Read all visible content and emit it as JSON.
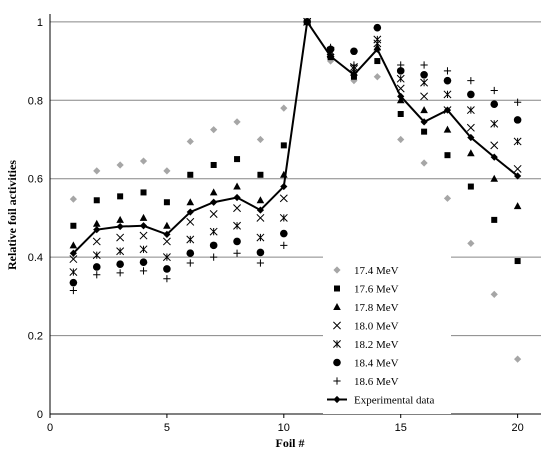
{
  "chart_data": {
    "type": "scatter",
    "title": "",
    "xlabel": "Foil #",
    "ylabel": "Relative foil activities",
    "xlim": [
      0,
      21
    ],
    "ylim": [
      0,
      1.02
    ],
    "xticks": [
      0,
      5,
      10,
      15,
      20
    ],
    "yticks": [
      0,
      0.2,
      0.4,
      0.6,
      0.8,
      1
    ],
    "ytick_labels": [
      "0",
      "0.2",
      "0.4",
      "0.6",
      "0.8",
      "1"
    ],
    "grid": "horizontal",
    "legend_position": "lower-center",
    "x": [
      1,
      2,
      3,
      4,
      5,
      6,
      7,
      8,
      9,
      10,
      11,
      12,
      13,
      14,
      15,
      16,
      17,
      18,
      19,
      20
    ],
    "series": [
      {
        "name": "17.4 MeV",
        "marker": "diamond",
        "color": "#a6a6a6",
        "values": [
          0.548,
          0.62,
          0.635,
          0.645,
          0.62,
          0.695,
          0.725,
          0.745,
          0.7,
          0.78,
          1.0,
          0.9,
          0.85,
          0.86,
          0.7,
          0.64,
          0.55,
          0.435,
          0.305,
          0.14
        ]
      },
      {
        "name": "17.6 MeV",
        "marker": "square",
        "color": "#000000",
        "values": [
          0.48,
          0.545,
          0.555,
          0.565,
          0.54,
          0.61,
          0.635,
          0.65,
          0.61,
          0.685,
          1.0,
          0.91,
          0.86,
          0.9,
          0.765,
          0.72,
          0.66,
          0.58,
          0.495,
          0.39
        ]
      },
      {
        "name": "17.8 MeV",
        "marker": "triangle",
        "color": "#000000",
        "values": [
          0.43,
          0.485,
          0.495,
          0.5,
          0.48,
          0.54,
          0.565,
          0.58,
          0.545,
          0.61,
          1.0,
          0.915,
          0.87,
          0.935,
          0.8,
          0.775,
          0.725,
          0.665,
          0.6,
          0.53
        ]
      },
      {
        "name": "18.0 MeV",
        "marker": "x",
        "color": "#000000",
        "values": [
          0.395,
          0.44,
          0.45,
          0.455,
          0.44,
          0.49,
          0.51,
          0.525,
          0.5,
          0.55,
          1.0,
          0.92,
          0.88,
          0.945,
          0.83,
          0.81,
          0.775,
          0.73,
          0.685,
          0.625
        ]
      },
      {
        "name": "18.2 MeV",
        "marker": "star",
        "color": "#000000",
        "values": [
          0.362,
          0.405,
          0.415,
          0.42,
          0.4,
          0.445,
          0.465,
          0.48,
          0.45,
          0.5,
          1.0,
          0.925,
          0.885,
          0.955,
          0.855,
          0.845,
          0.815,
          0.775,
          0.74,
          0.695
        ]
      },
      {
        "name": "18.4 MeV",
        "marker": "circle",
        "color": "#000000",
        "values": [
          0.335,
          0.375,
          0.382,
          0.387,
          0.37,
          0.41,
          0.43,
          0.44,
          0.412,
          0.46,
          1.0,
          0.93,
          0.925,
          0.985,
          0.875,
          0.865,
          0.85,
          0.815,
          0.79,
          0.75
        ]
      },
      {
        "name": "18.6 MeV",
        "marker": "plus",
        "color": "#000000",
        "values": [
          0.315,
          0.355,
          0.36,
          0.365,
          0.345,
          0.385,
          0.4,
          0.41,
          0.385,
          0.43,
          1.0,
          0.935,
          0.89,
          0.985,
          0.89,
          0.89,
          0.875,
          0.85,
          0.825,
          0.795
        ]
      },
      {
        "name": "Experimental data",
        "marker": "diamond-line",
        "color": "#000000",
        "values": [
          0.41,
          0.47,
          0.478,
          0.48,
          0.458,
          0.515,
          0.54,
          0.552,
          0.52,
          0.58,
          1.0,
          0.912,
          0.865,
          0.93,
          0.81,
          0.745,
          0.775,
          0.705,
          0.655,
          0.607
        ]
      }
    ]
  }
}
